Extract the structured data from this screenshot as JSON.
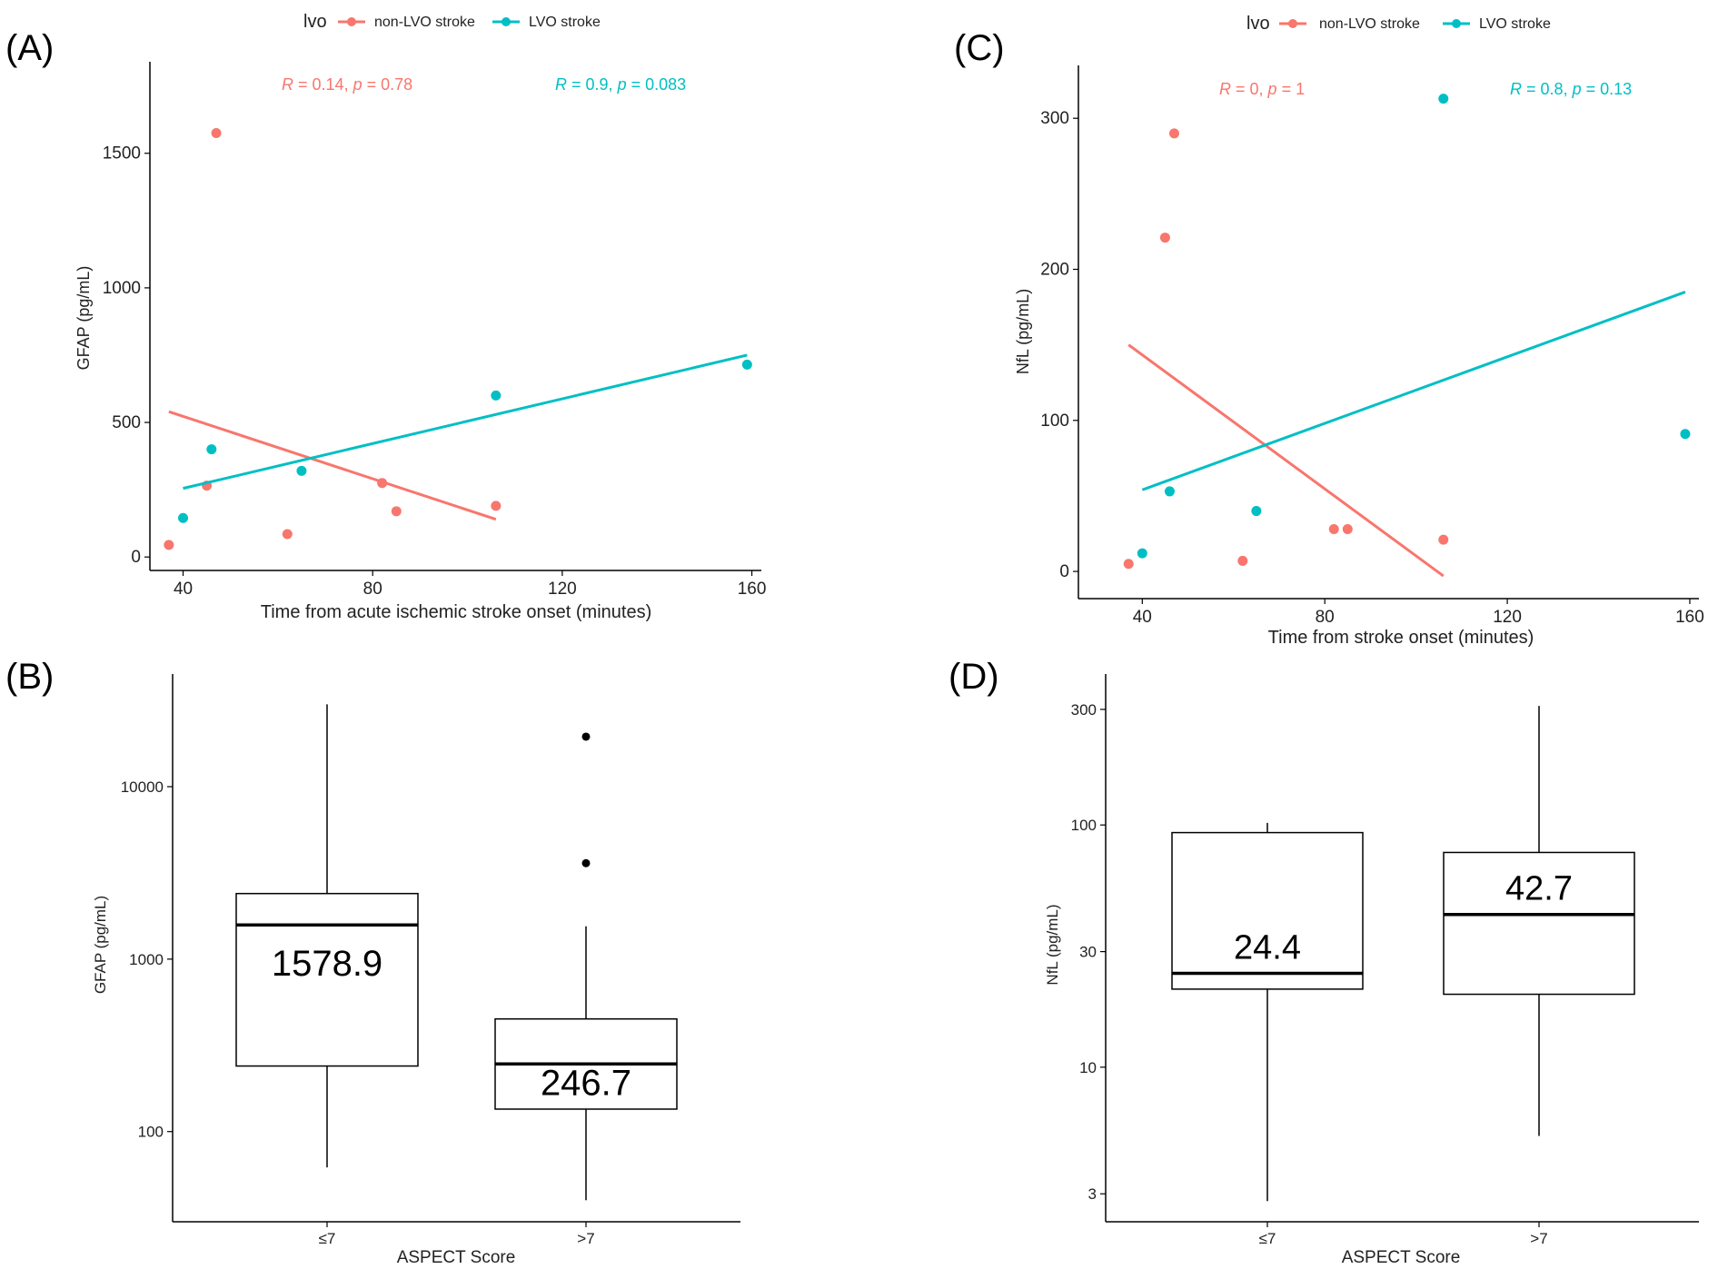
{
  "colors": {
    "non_lvo": "#F8766D",
    "lvo": "#00BFC4",
    "axis": "#000000",
    "box": "#000000"
  },
  "chart_data": [
    {
      "panel": "(A)",
      "type": "scatter",
      "legend": {
        "title": "lvo",
        "placement": "top",
        "items": [
          "non-LVO stroke",
          "LVO stroke"
        ]
      },
      "xlabel": "Time from acute ischemic stroke onset (minutes)",
      "ylabel": "GFAP (pg/mL)",
      "xlim": [
        33,
        162
      ],
      "ylim": [
        -50,
        1840
      ],
      "xticks": [
        40,
        80,
        120,
        160
      ],
      "yticks": [
        0,
        500,
        1000,
        1500
      ],
      "annotations": [
        {
          "series": "non-LVO stroke",
          "R": "0.14",
          "p": "0.78"
        },
        {
          "series": "LVO stroke",
          "R": "0.9",
          "p": "0.083"
        }
      ],
      "series": [
        {
          "name": "non-LVO stroke",
          "color": "#F8766D",
          "points": [
            [
              37,
              45
            ],
            [
              45,
              265
            ],
            [
              47,
              1575
            ],
            [
              62,
              85
            ],
            [
              82,
              275
            ],
            [
              85,
              170
            ],
            [
              106,
              190
            ]
          ],
          "fit": [
            [
              37,
              540
            ],
            [
              106,
              140
            ]
          ]
        },
        {
          "name": "LVO stroke",
          "color": "#00BFC4",
          "points": [
            [
              40,
              145
            ],
            [
              46,
              400
            ],
            [
              65,
              320
            ],
            [
              106,
              600
            ],
            [
              159,
              715
            ]
          ],
          "fit": [
            [
              40,
              255
            ],
            [
              159,
              750
            ]
          ]
        }
      ]
    },
    {
      "panel": "(B)",
      "type": "box",
      "xlabel": "ASPECT Score",
      "ylabel": "GFAP (pg/mL)",
      "yscale": "log",
      "ylim": [
        30,
        45000
      ],
      "yticks": [
        100,
        1000,
        10000
      ],
      "boxes": [
        {
          "label": "≤7",
          "whisker_low": 62,
          "q1": 240,
          "median": 1578.9,
          "q3": 2400,
          "whisker_high": 30000,
          "outliers": [],
          "median_label": "1578.9"
        },
        {
          "label": ">7",
          "whisker_low": 40,
          "q1": 135,
          "median": 246.7,
          "q3": 450,
          "whisker_high": 1550,
          "outliers": [
            3600,
            19500
          ],
          "median_label": "246.7"
        }
      ]
    },
    {
      "panel": "(C)",
      "type": "scatter",
      "legend": {
        "title": "lvo",
        "placement": "top",
        "items": [
          "non-LVO stroke",
          "LVO stroke"
        ]
      },
      "xlabel": "Time from stroke onset (minutes)",
      "ylabel": "NfL (pg/mL)",
      "xlim": [
        26,
        162
      ],
      "ylim": [
        -18,
        335
      ],
      "xticks": [
        40,
        80,
        120,
        160
      ],
      "yticks": [
        0,
        100,
        200,
        300
      ],
      "annotations": [
        {
          "series": "non-LVO stroke",
          "R": "0",
          "p": "1"
        },
        {
          "series": "LVO stroke",
          "R": "0.8",
          "p": "0.13"
        }
      ],
      "series": [
        {
          "name": "non-LVO stroke",
          "color": "#F8766D",
          "points": [
            [
              37,
              5
            ],
            [
              45,
              221
            ],
            [
              47,
              290
            ],
            [
              62,
              7
            ],
            [
              82,
              28
            ],
            [
              85,
              28
            ],
            [
              106,
              21
            ]
          ],
          "fit": [
            [
              37,
              150
            ],
            [
              106,
              -3
            ]
          ]
        },
        {
          "name": "LVO stroke",
          "color": "#00BFC4",
          "points": [
            [
              40,
              12
            ],
            [
              46,
              53
            ],
            [
              65,
              40
            ],
            [
              106,
              313
            ],
            [
              159,
              91
            ]
          ],
          "fit": [
            [
              40,
              54
            ],
            [
              159,
              185
            ]
          ]
        }
      ]
    },
    {
      "panel": "(D)",
      "type": "box",
      "xlabel": "ASPECT Score",
      "ylabel": "NfL (pg/mL)",
      "yscale": "log",
      "ylim": [
        2.3,
        420
      ],
      "yticks": [
        3,
        10,
        30,
        100,
        300
      ],
      "boxes": [
        {
          "label": "≤7",
          "whisker_low": 2.8,
          "q1": 21,
          "median": 24.4,
          "q3": 93,
          "whisker_high": 102,
          "outliers": [],
          "median_label": "24.4"
        },
        {
          "label": ">7",
          "whisker_low": 5.2,
          "q1": 20,
          "median": 42.7,
          "q3": 77,
          "whisker_high": 310,
          "outliers": [],
          "median_label": "42.7"
        }
      ]
    }
  ]
}
